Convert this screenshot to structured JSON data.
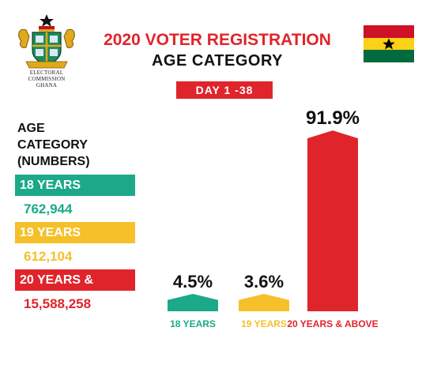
{
  "header": {
    "logo_caption_line1": "ELECTORAL COMMISSION",
    "logo_caption_line2": "GHANA",
    "title_line1": "2020 VOTER REGISTRATION",
    "title_line2": "AGE  CATEGORY",
    "day_badge": "DAY 1 -38"
  },
  "legend": {
    "heading_line1": "AGE",
    "heading_line2": "CATEGORY",
    "heading_line3": "(NUMBERS)",
    "items": [
      {
        "label": "18 YEARS",
        "value": "762,944",
        "color": "#1ba98a"
      },
      {
        "label": "19 YEARS",
        "value": "612,104",
        "color": "#f6c02a"
      },
      {
        "label": "20 YEARS & ABOVE",
        "value": "15,588,258",
        "color": "#e0242b"
      }
    ]
  },
  "colors": {
    "teal": "#1ba98a",
    "yellow": "#f6c02a",
    "red": "#e0242b",
    "flag_red": "#ce1126",
    "flag_gold": "#fcd116",
    "flag_green": "#006b3f",
    "flag_star": "#000000"
  },
  "chart_data": {
    "type": "bar",
    "categories": [
      "18 YEARS",
      "19 YEARS",
      "20 YEARS & ABOVE"
    ],
    "values": [
      4.5,
      3.6,
      91.9
    ],
    "value_labels": [
      "4.5%",
      "3.6%",
      "91.9%"
    ],
    "colors": [
      "#1ba98a",
      "#f6c02a",
      "#e0242b"
    ],
    "bar_shape": "arrow-up",
    "ylim": [
      0,
      100
    ],
    "grid": false,
    "legend": "none"
  }
}
